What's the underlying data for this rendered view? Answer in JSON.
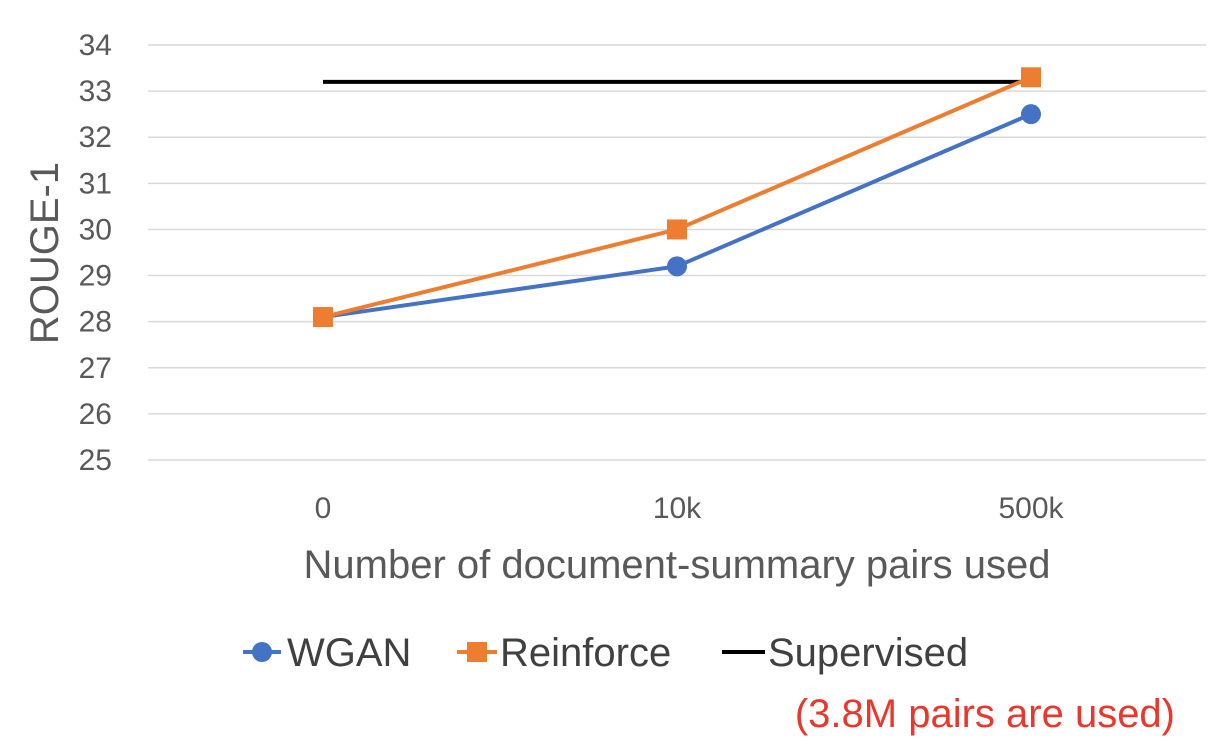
{
  "chart_data": {
    "type": "line",
    "title": "",
    "xlabel": "Number of document-summary pairs used",
    "ylabel": "ROUGE-1",
    "categories": [
      "0",
      "10k",
      "500k"
    ],
    "ylim": [
      25,
      34
    ],
    "yticks": [
      25,
      26,
      27,
      28,
      29,
      30,
      31,
      32,
      33,
      34
    ],
    "grid": true,
    "legend_position": "bottom",
    "series": [
      {
        "name": "WGAN",
        "values": [
          28.1,
          29.2,
          32.5
        ],
        "color": "#4472C4",
        "marker": "circle"
      },
      {
        "name": "Reinforce",
        "values": [
          28.1,
          30.0,
          33.3
        ],
        "color": "#ED7D31",
        "marker": "square"
      }
    ],
    "reference_line": {
      "name": "Supervised",
      "value": 33.2,
      "color": "#000000"
    },
    "annotation": {
      "text": "(3.8M pairs are used)",
      "color": "#E8372C"
    }
  }
}
